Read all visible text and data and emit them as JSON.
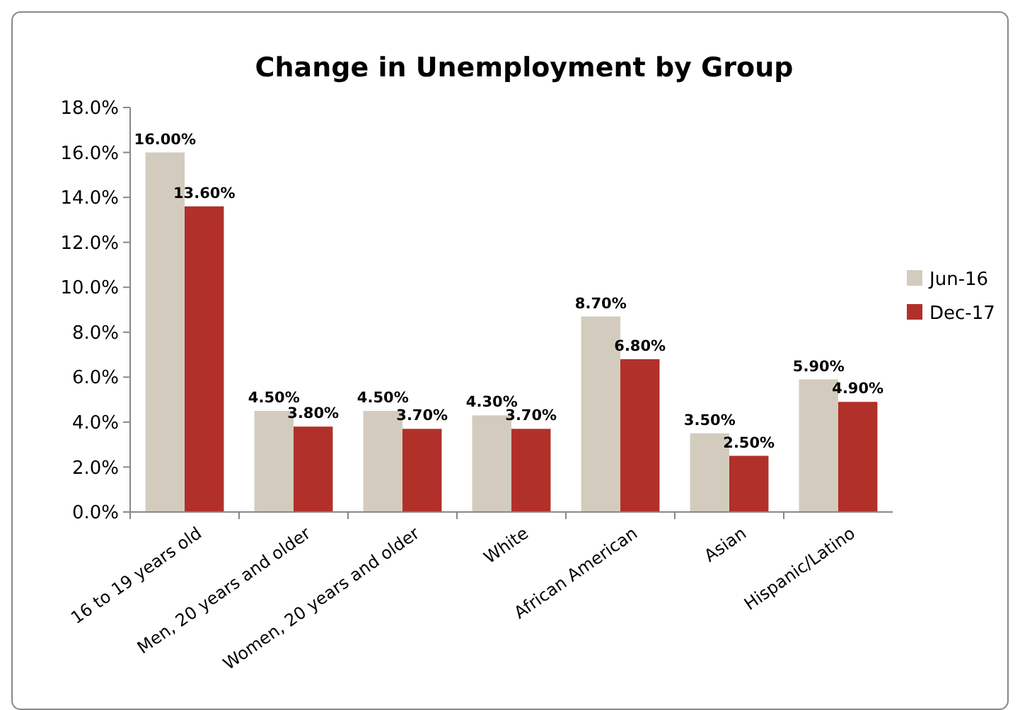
{
  "chart_data": {
    "type": "bar",
    "title": "Change in Unemployment by Group",
    "categories": [
      "16 to 19 years old",
      "Men, 20 years and older",
      "Women, 20 years and older",
      "White",
      "African American",
      "Asian",
      "Hispanic/Latino"
    ],
    "series": [
      {
        "name": "Jun-16",
        "color": "#d3ccbe",
        "values": [
          16.0,
          4.5,
          4.5,
          4.3,
          8.7,
          3.5,
          5.9
        ],
        "value_labels": [
          "16.00%",
          "4.50%",
          "4.50%",
          "4.30%",
          "8.70%",
          "3.50%",
          "5.90%"
        ]
      },
      {
        "name": "Dec-17",
        "color": "#b1302a",
        "values": [
          13.6,
          3.8,
          3.7,
          3.7,
          6.8,
          2.5,
          4.9
        ],
        "value_labels": [
          "13.60%",
          "3.80%",
          "3.70%",
          "3.70%",
          "6.80%",
          "2.50%",
          "4.90%"
        ]
      }
    ],
    "ylim": [
      0,
      18
    ],
    "yticks": [
      {
        "value": 0,
        "label": "0.0%"
      },
      {
        "value": 2,
        "label": "2.0%"
      },
      {
        "value": 4,
        "label": "4.0%"
      },
      {
        "value": 6,
        "label": "6.0%"
      },
      {
        "value": 8,
        "label": "8.0%"
      },
      {
        "value": 10,
        "label": "10.0%"
      },
      {
        "value": 12,
        "label": "12.0%"
      },
      {
        "value": 14,
        "label": "14.0%"
      },
      {
        "value": 16,
        "label": "16.0%"
      },
      {
        "value": 18,
        "label": "18.0%"
      }
    ],
    "legend": "right"
  }
}
